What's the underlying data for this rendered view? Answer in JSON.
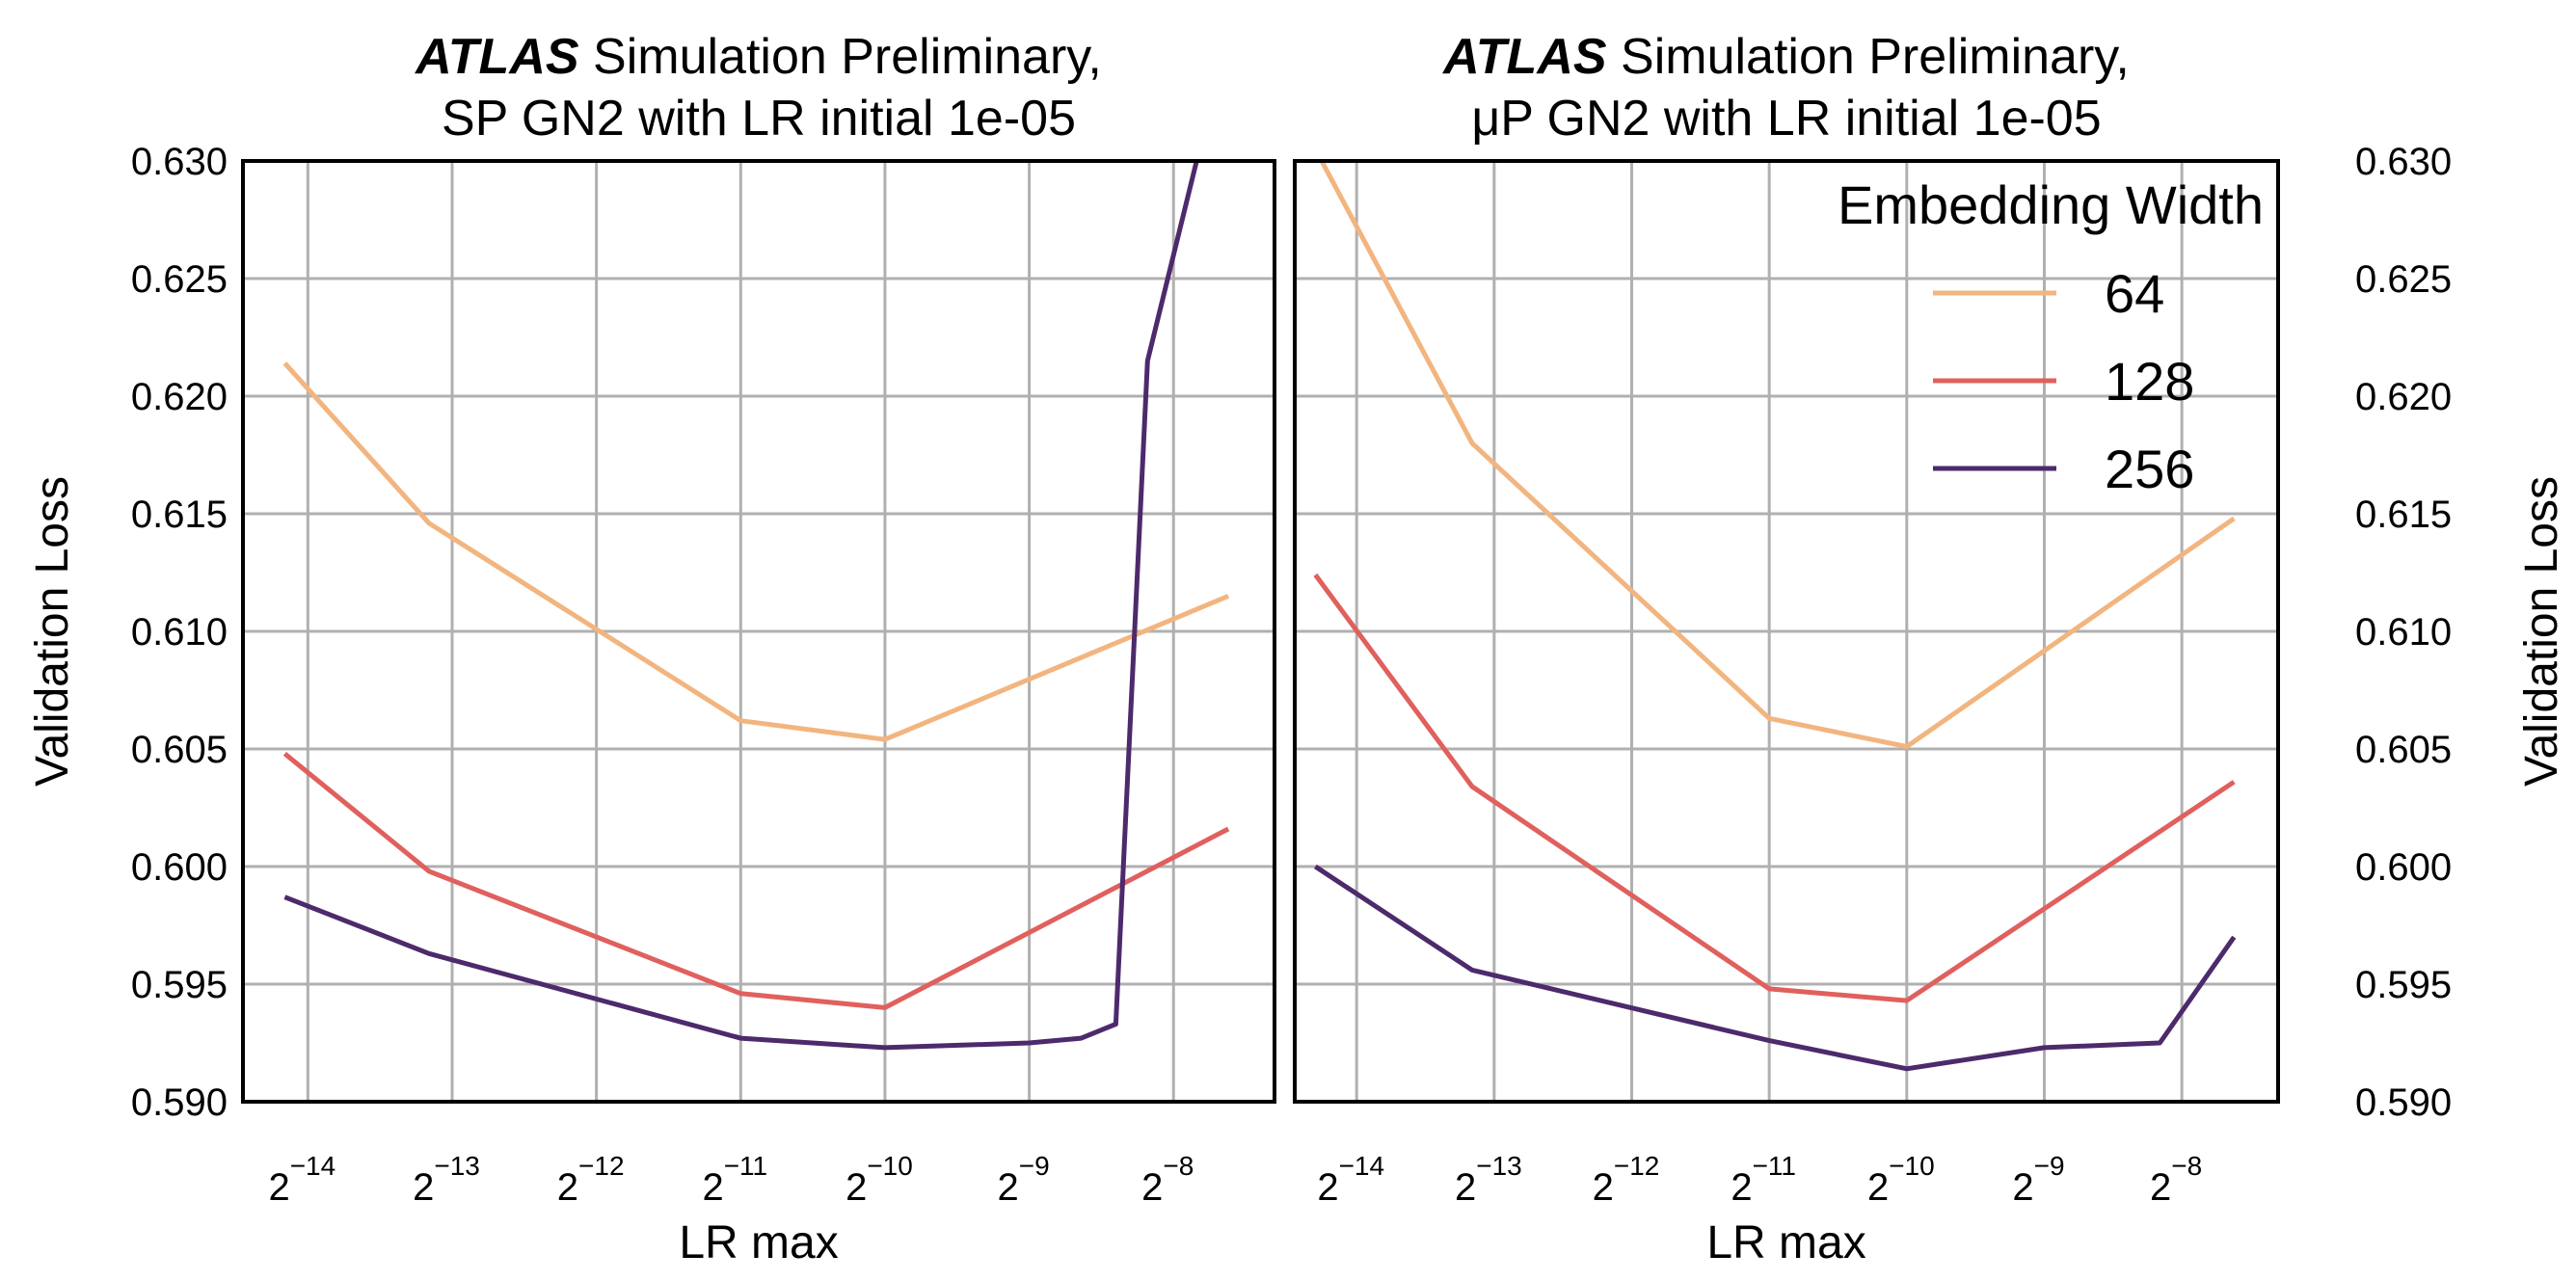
{
  "chart_data": [
    {
      "type": "line",
      "title": {
        "bold": "ATLAS",
        "line1_rest": "Simulation Preliminary,",
        "line2": "SP GN2 with LR initial 1e-05"
      },
      "xlabel": "LR max",
      "ylabel": "Validation Loss",
      "xscale": "log2",
      "xlim_log2": [
        -14.45,
        -7.3
      ],
      "ylim": [
        0.59,
        0.63
      ],
      "grid": true,
      "xticks": [
        {
          "base": "2",
          "exp": "−14",
          "value": -14
        },
        {
          "base": "2",
          "exp": "−13",
          "value": -13
        },
        {
          "base": "2",
          "exp": "−12",
          "value": -12
        },
        {
          "base": "2",
          "exp": "−11",
          "value": -11
        },
        {
          "base": "2",
          "exp": "−10",
          "value": -10
        },
        {
          "base": "2",
          "exp": "−9",
          "value": -9
        },
        {
          "base": "2",
          "exp": "−8",
          "value": -8
        }
      ],
      "yticks": [
        "0.590",
        "0.595",
        "0.600",
        "0.605",
        "0.610",
        "0.615",
        "0.620",
        "0.625",
        "0.630"
      ],
      "yaxis_side": "left",
      "series": [
        {
          "name": "64",
          "color": "#f2b57f",
          "points": [
            [
              -14.16,
              0.6214
            ],
            [
              -13.16,
              0.6146
            ],
            [
              -11.0,
              0.6062
            ],
            [
              -10.0,
              0.6054
            ],
            [
              -7.62,
              0.6115
            ]
          ]
        },
        {
          "name": "128",
          "color": "#e0605e",
          "points": [
            [
              -14.16,
              0.6048
            ],
            [
              -13.16,
              0.5998
            ],
            [
              -11.0,
              0.5946
            ],
            [
              -10.0,
              0.594
            ],
            [
              -7.62,
              0.6016
            ]
          ]
        },
        {
          "name": "256",
          "color": "#4d2a6b",
          "points": [
            [
              -14.16,
              0.5987
            ],
            [
              -13.16,
              0.5963
            ],
            [
              -11.0,
              0.5927
            ],
            [
              -10.0,
              0.5923
            ],
            [
              -9.0,
              0.5925
            ],
            [
              -8.64,
              0.5927
            ],
            [
              -8.4,
              0.5933
            ],
            [
              -8.18,
              0.6215
            ],
            [
              -7.82,
              0.6305
            ]
          ]
        }
      ]
    },
    {
      "type": "line",
      "title": {
        "bold": "ATLAS",
        "line1_rest": "Simulation Preliminary,",
        "line2": "μP GN2 with LR initial 1e-05"
      },
      "xlabel": "LR max",
      "ylabel": "Validation Loss",
      "xscale": "log2",
      "xlim_log2": [
        -14.45,
        -7.3
      ],
      "ylim": [
        0.59,
        0.63
      ],
      "grid": true,
      "xticks": [
        {
          "base": "2",
          "exp": "−14",
          "value": -14
        },
        {
          "base": "2",
          "exp": "−13",
          "value": -13
        },
        {
          "base": "2",
          "exp": "−12",
          "value": -12
        },
        {
          "base": "2",
          "exp": "−11",
          "value": -11
        },
        {
          "base": "2",
          "exp": "−10",
          "value": -10
        },
        {
          "base": "2",
          "exp": "−9",
          "value": -9
        },
        {
          "base": "2",
          "exp": "−8",
          "value": -8
        }
      ],
      "yticks": [
        "0.590",
        "0.595",
        "0.600",
        "0.605",
        "0.610",
        "0.615",
        "0.620",
        "0.625",
        "0.630"
      ],
      "yaxis_side": "right",
      "legend": {
        "title": "Embedding Width",
        "placement": "top-right"
      },
      "series": [
        {
          "name": "64",
          "color": "#f2b57f",
          "points": [
            [
              -14.3,
              0.6305
            ],
            [
              -13.16,
              0.618
            ],
            [
              -11.0,
              0.6063
            ],
            [
              -10.0,
              0.6051
            ],
            [
              -7.62,
              0.6148
            ]
          ]
        },
        {
          "name": "128",
          "color": "#e0605e",
          "points": [
            [
              -14.3,
              0.6124
            ],
            [
              -13.16,
              0.6034
            ],
            [
              -11.0,
              0.5948
            ],
            [
              -10.0,
              0.5943
            ],
            [
              -7.62,
              0.6036
            ]
          ]
        },
        {
          "name": "256",
          "color": "#4d2a6b",
          "points": [
            [
              -14.3,
              0.6
            ],
            [
              -13.16,
              0.5956
            ],
            [
              -11.0,
              0.5926
            ],
            [
              -10.0,
              0.5914
            ],
            [
              -9.0,
              0.5923
            ],
            [
              -8.16,
              0.5925
            ],
            [
              -7.62,
              0.597
            ]
          ]
        }
      ]
    }
  ]
}
